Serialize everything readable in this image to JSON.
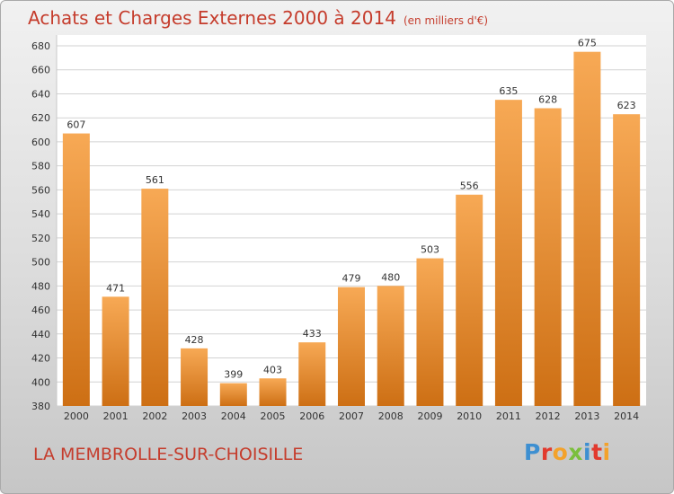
{
  "header": {
    "title": "Achats et Charges Externes 2000 à 2014",
    "unit": "(en milliers d'€)"
  },
  "footer": {
    "town": "LA MEMBROLLE-SUR-CHOISILLE",
    "logo": "Proxiti"
  },
  "colors": {
    "title": "#c53c2c",
    "bar_light": "#f7a955",
    "bar_dark": "#cd6f14",
    "logo": [
      "#3d8fd1",
      "#e23a2e",
      "#f3a22b",
      "#7bbf3d",
      "#3d8fd1",
      "#e23a2e",
      "#f3a22b"
    ]
  },
  "chart_data": {
    "type": "bar",
    "title": "Achats et Charges Externes 2000 à 2014",
    "subtitle": "(en milliers d'€)",
    "categories": [
      "2000",
      "2001",
      "2002",
      "2003",
      "2004",
      "2005",
      "2006",
      "2007",
      "2008",
      "2009",
      "2010",
      "2011",
      "2012",
      "2013",
      "2014"
    ],
    "values": [
      607,
      471,
      561,
      428,
      399,
      403,
      433,
      479,
      480,
      503,
      556,
      635,
      628,
      675,
      623
    ],
    "ylim": [
      380,
      680
    ],
    "yticks": [
      380,
      400,
      420,
      440,
      460,
      480,
      500,
      520,
      540,
      560,
      580,
      600,
      620,
      640,
      660,
      680
    ],
    "grid": true,
    "legend": "none"
  }
}
